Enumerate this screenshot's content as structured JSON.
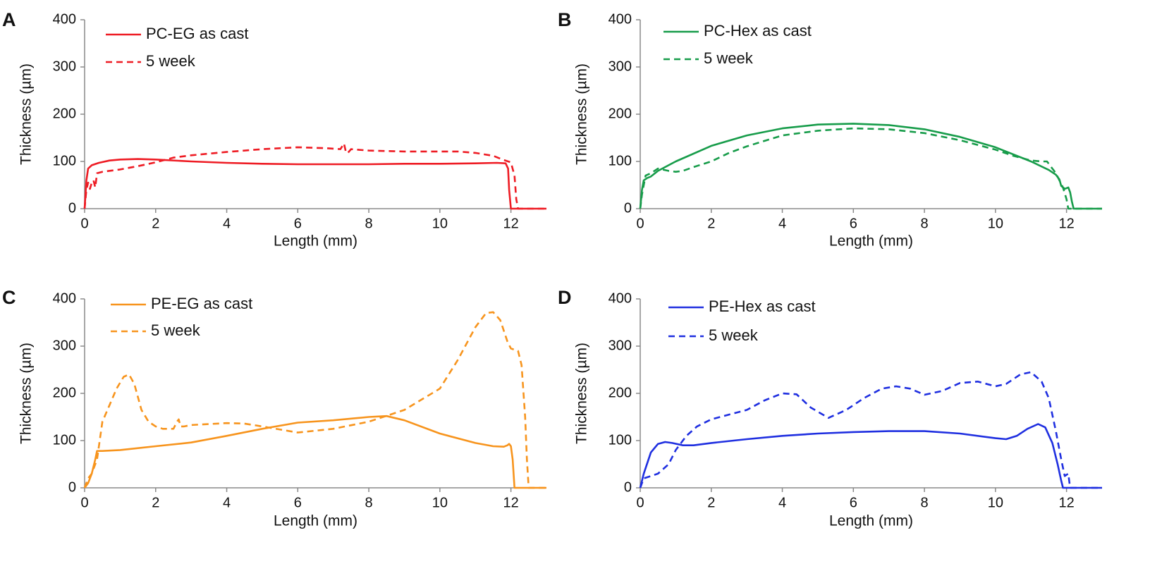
{
  "chart_data": [
    {
      "type": "line",
      "panel_label": "A",
      "xlabel": "Length (mm)",
      "ylabel": "Thickness (µm)",
      "xlim": [
        0,
        13
      ],
      "ylim": [
        0,
        400
      ],
      "xticks": [
        "0",
        "2",
        "4",
        "6",
        "8",
        "10",
        "12"
      ],
      "yticks": [
        "0",
        "100",
        "200",
        "300",
        "400"
      ],
      "grid": false,
      "legend_position": "top-left",
      "color": "#ee1c24",
      "series": [
        {
          "name": "PC-EG as cast",
          "style": "solid",
          "x": [
            0,
            0.05,
            0.1,
            0.2,
            0.4,
            0.7,
            1.0,
            1.5,
            2.0,
            3.0,
            4.0,
            5.0,
            6.0,
            7.0,
            8.0,
            9.0,
            10.0,
            11.0,
            11.6,
            11.85,
            11.92,
            11.95,
            12.0,
            13.0
          ],
          "y": [
            0,
            60,
            85,
            92,
            97,
            102,
            104,
            105,
            104,
            100,
            97,
            95,
            94,
            94,
            94,
            95,
            95,
            96,
            97,
            96,
            85,
            40,
            0,
            0
          ]
        },
        {
          "name": "5 week",
          "style": "dashed",
          "x": [
            0,
            0.05,
            0.1,
            0.15,
            0.2,
            0.25,
            0.3,
            0.35,
            0.5,
            1.0,
            1.5,
            2.0,
            2.5,
            3.0,
            4.0,
            5.0,
            6.0,
            6.8,
            7.2,
            7.3,
            7.35,
            7.4,
            7.5,
            8.0,
            9.0,
            10.0,
            10.5,
            11.0,
            11.5,
            11.8,
            12.0,
            12.1,
            12.15,
            12.2,
            13.0
          ],
          "y": [
            0,
            40,
            55,
            42,
            55,
            60,
            45,
            75,
            78,
            83,
            90,
            98,
            108,
            113,
            120,
            126,
            130,
            128,
            126,
            138,
            122,
            117,
            126,
            123,
            121,
            121,
            121,
            118,
            112,
            103,
            98,
            70,
            20,
            0,
            0
          ]
        }
      ]
    },
    {
      "type": "line",
      "panel_label": "B",
      "xlabel": "Length (mm)",
      "ylabel": "Thickness (µm)",
      "xlim": [
        0,
        13
      ],
      "ylim": [
        0,
        400
      ],
      "xticks": [
        "0",
        "2",
        "4",
        "6",
        "8",
        "10",
        "12"
      ],
      "yticks": [
        "0",
        "100",
        "200",
        "300",
        "400"
      ],
      "grid": false,
      "legend_position": "top-left",
      "color": "#179c4a",
      "series": [
        {
          "name": "PC-Hex as cast",
          "style": "solid",
          "x": [
            0,
            0.05,
            0.1,
            0.2,
            0.3,
            0.5,
            1.0,
            2.0,
            3.0,
            4.0,
            5.0,
            6.0,
            7.0,
            8.0,
            9.0,
            10.0,
            11.0,
            11.5,
            11.7,
            11.8,
            11.85,
            11.95,
            12.05,
            12.1,
            12.15,
            12.2,
            13.0
          ],
          "y": [
            0,
            40,
            60,
            65,
            68,
            80,
            100,
            133,
            155,
            170,
            178,
            180,
            177,
            168,
            152,
            130,
            100,
            82,
            72,
            62,
            48,
            42,
            45,
            35,
            15,
            0,
            0
          ]
        },
        {
          "name": "5 week",
          "style": "dashed",
          "x": [
            0,
            0.05,
            0.1,
            0.15,
            0.3,
            0.5,
            0.8,
            1.0,
            1.2,
            1.5,
            2.0,
            2.5,
            3.0,
            4.0,
            5.0,
            6.0,
            7.0,
            8.0,
            9.0,
            10.0,
            10.5,
            11.0,
            11.3,
            11.45,
            11.55,
            11.65,
            11.7,
            11.8,
            11.9,
            12.0,
            12.05,
            13.0
          ],
          "y": [
            0,
            30,
            50,
            70,
            75,
            85,
            80,
            78,
            80,
            88,
            100,
            118,
            132,
            155,
            165,
            170,
            168,
            160,
            145,
            125,
            112,
            102,
            100,
            100,
            90,
            80,
            75,
            60,
            45,
            20,
            0,
            0
          ]
        }
      ]
    },
    {
      "type": "line",
      "panel_label": "C",
      "xlabel": "Length (mm)",
      "ylabel": "Thickness (µm)",
      "xlim": [
        0,
        13
      ],
      "ylim": [
        0,
        400
      ],
      "xticks": [
        "0",
        "2",
        "4",
        "6",
        "8",
        "10",
        "12"
      ],
      "yticks": [
        "0",
        "100",
        "200",
        "300",
        "400"
      ],
      "grid": false,
      "legend_position": "top-left",
      "color": "#f7941d",
      "series": [
        {
          "name": "PE-EG as cast",
          "style": "solid",
          "x": [
            0,
            0.1,
            0.2,
            0.3,
            0.35,
            0.5,
            1.0,
            2.0,
            3.0,
            4.0,
            5.0,
            6.0,
            7.0,
            8.0,
            8.5,
            9.0,
            10.0,
            11.0,
            11.5,
            11.8,
            11.9,
            11.95,
            12.0,
            12.05,
            12.1,
            13.0
          ],
          "y": [
            0,
            10,
            30,
            60,
            78,
            78,
            80,
            88,
            96,
            110,
            125,
            138,
            143,
            150,
            152,
            143,
            115,
            95,
            88,
            87,
            90,
            93,
            88,
            60,
            0,
            0
          ]
        },
        {
          "name": "5 week",
          "style": "dashed",
          "x": [
            0,
            0.1,
            0.2,
            0.35,
            0.5,
            0.7,
            0.9,
            1.1,
            1.25,
            1.4,
            1.6,
            1.8,
            2.0,
            2.2,
            2.5,
            2.6,
            2.65,
            2.7,
            2.8,
            3.0,
            4.0,
            4.5,
            5.0,
            6.0,
            7.0,
            8.0,
            9.0,
            10.0,
            10.5,
            11.0,
            11.3,
            11.5,
            11.7,
            11.9,
            12.0,
            12.2,
            12.3,
            12.4,
            12.45,
            12.5,
            13.0
          ],
          "y": [
            0,
            20,
            30,
            60,
            140,
            175,
            210,
            235,
            240,
            220,
            165,
            140,
            130,
            125,
            125,
            140,
            145,
            130,
            130,
            133,
            137,
            136,
            130,
            117,
            125,
            140,
            165,
            210,
            270,
            340,
            370,
            372,
            355,
            310,
            295,
            290,
            260,
            150,
            60,
            0,
            0
          ]
        }
      ]
    },
    {
      "type": "line",
      "panel_label": "D",
      "xlabel": "Length (mm)",
      "ylabel": "Thickness (µm)",
      "xlim": [
        0,
        13
      ],
      "ylim": [
        0,
        400
      ],
      "xticks": [
        "0",
        "2",
        "4",
        "6",
        "8",
        "10",
        "12"
      ],
      "yticks": [
        "0",
        "100",
        "200",
        "300",
        "400"
      ],
      "grid": false,
      "legend_position": "top-left",
      "color": "#1f2fe0",
      "series": [
        {
          "name": "PE-Hex as cast",
          "style": "solid",
          "x": [
            0,
            0.1,
            0.3,
            0.5,
            0.7,
            0.9,
            1.2,
            1.5,
            2.0,
            3.0,
            4.0,
            5.0,
            6.0,
            7.0,
            8.0,
            9.0,
            10.0,
            10.3,
            10.6,
            10.9,
            11.2,
            11.4,
            11.6,
            11.75,
            11.85,
            11.9,
            13.0
          ],
          "y": [
            0,
            30,
            75,
            93,
            97,
            95,
            90,
            90,
            95,
            103,
            110,
            115,
            118,
            120,
            120,
            115,
            105,
            103,
            110,
            125,
            135,
            128,
            95,
            50,
            15,
            0,
            0
          ]
        },
        {
          "name": "5 week",
          "style": "dashed",
          "x": [
            0,
            0.1,
            0.3,
            0.5,
            0.8,
            1.0,
            1.3,
            1.6,
            2.0,
            2.5,
            3.0,
            3.5,
            4.0,
            4.4,
            4.8,
            5.3,
            5.8,
            6.3,
            6.8,
            7.2,
            7.6,
            8.0,
            8.5,
            9.0,
            9.5,
            10.0,
            10.3,
            10.7,
            11.0,
            11.3,
            11.5,
            11.7,
            11.85,
            11.95,
            12.05,
            12.1,
            13.0
          ],
          "y": [
            0,
            20,
            25,
            30,
            50,
            80,
            110,
            130,
            145,
            155,
            165,
            185,
            200,
            198,
            170,
            148,
            165,
            190,
            210,
            215,
            210,
            197,
            205,
            222,
            225,
            215,
            220,
            240,
            245,
            225,
            190,
            120,
            60,
            25,
            30,
            0,
            0
          ]
        }
      ]
    }
  ]
}
